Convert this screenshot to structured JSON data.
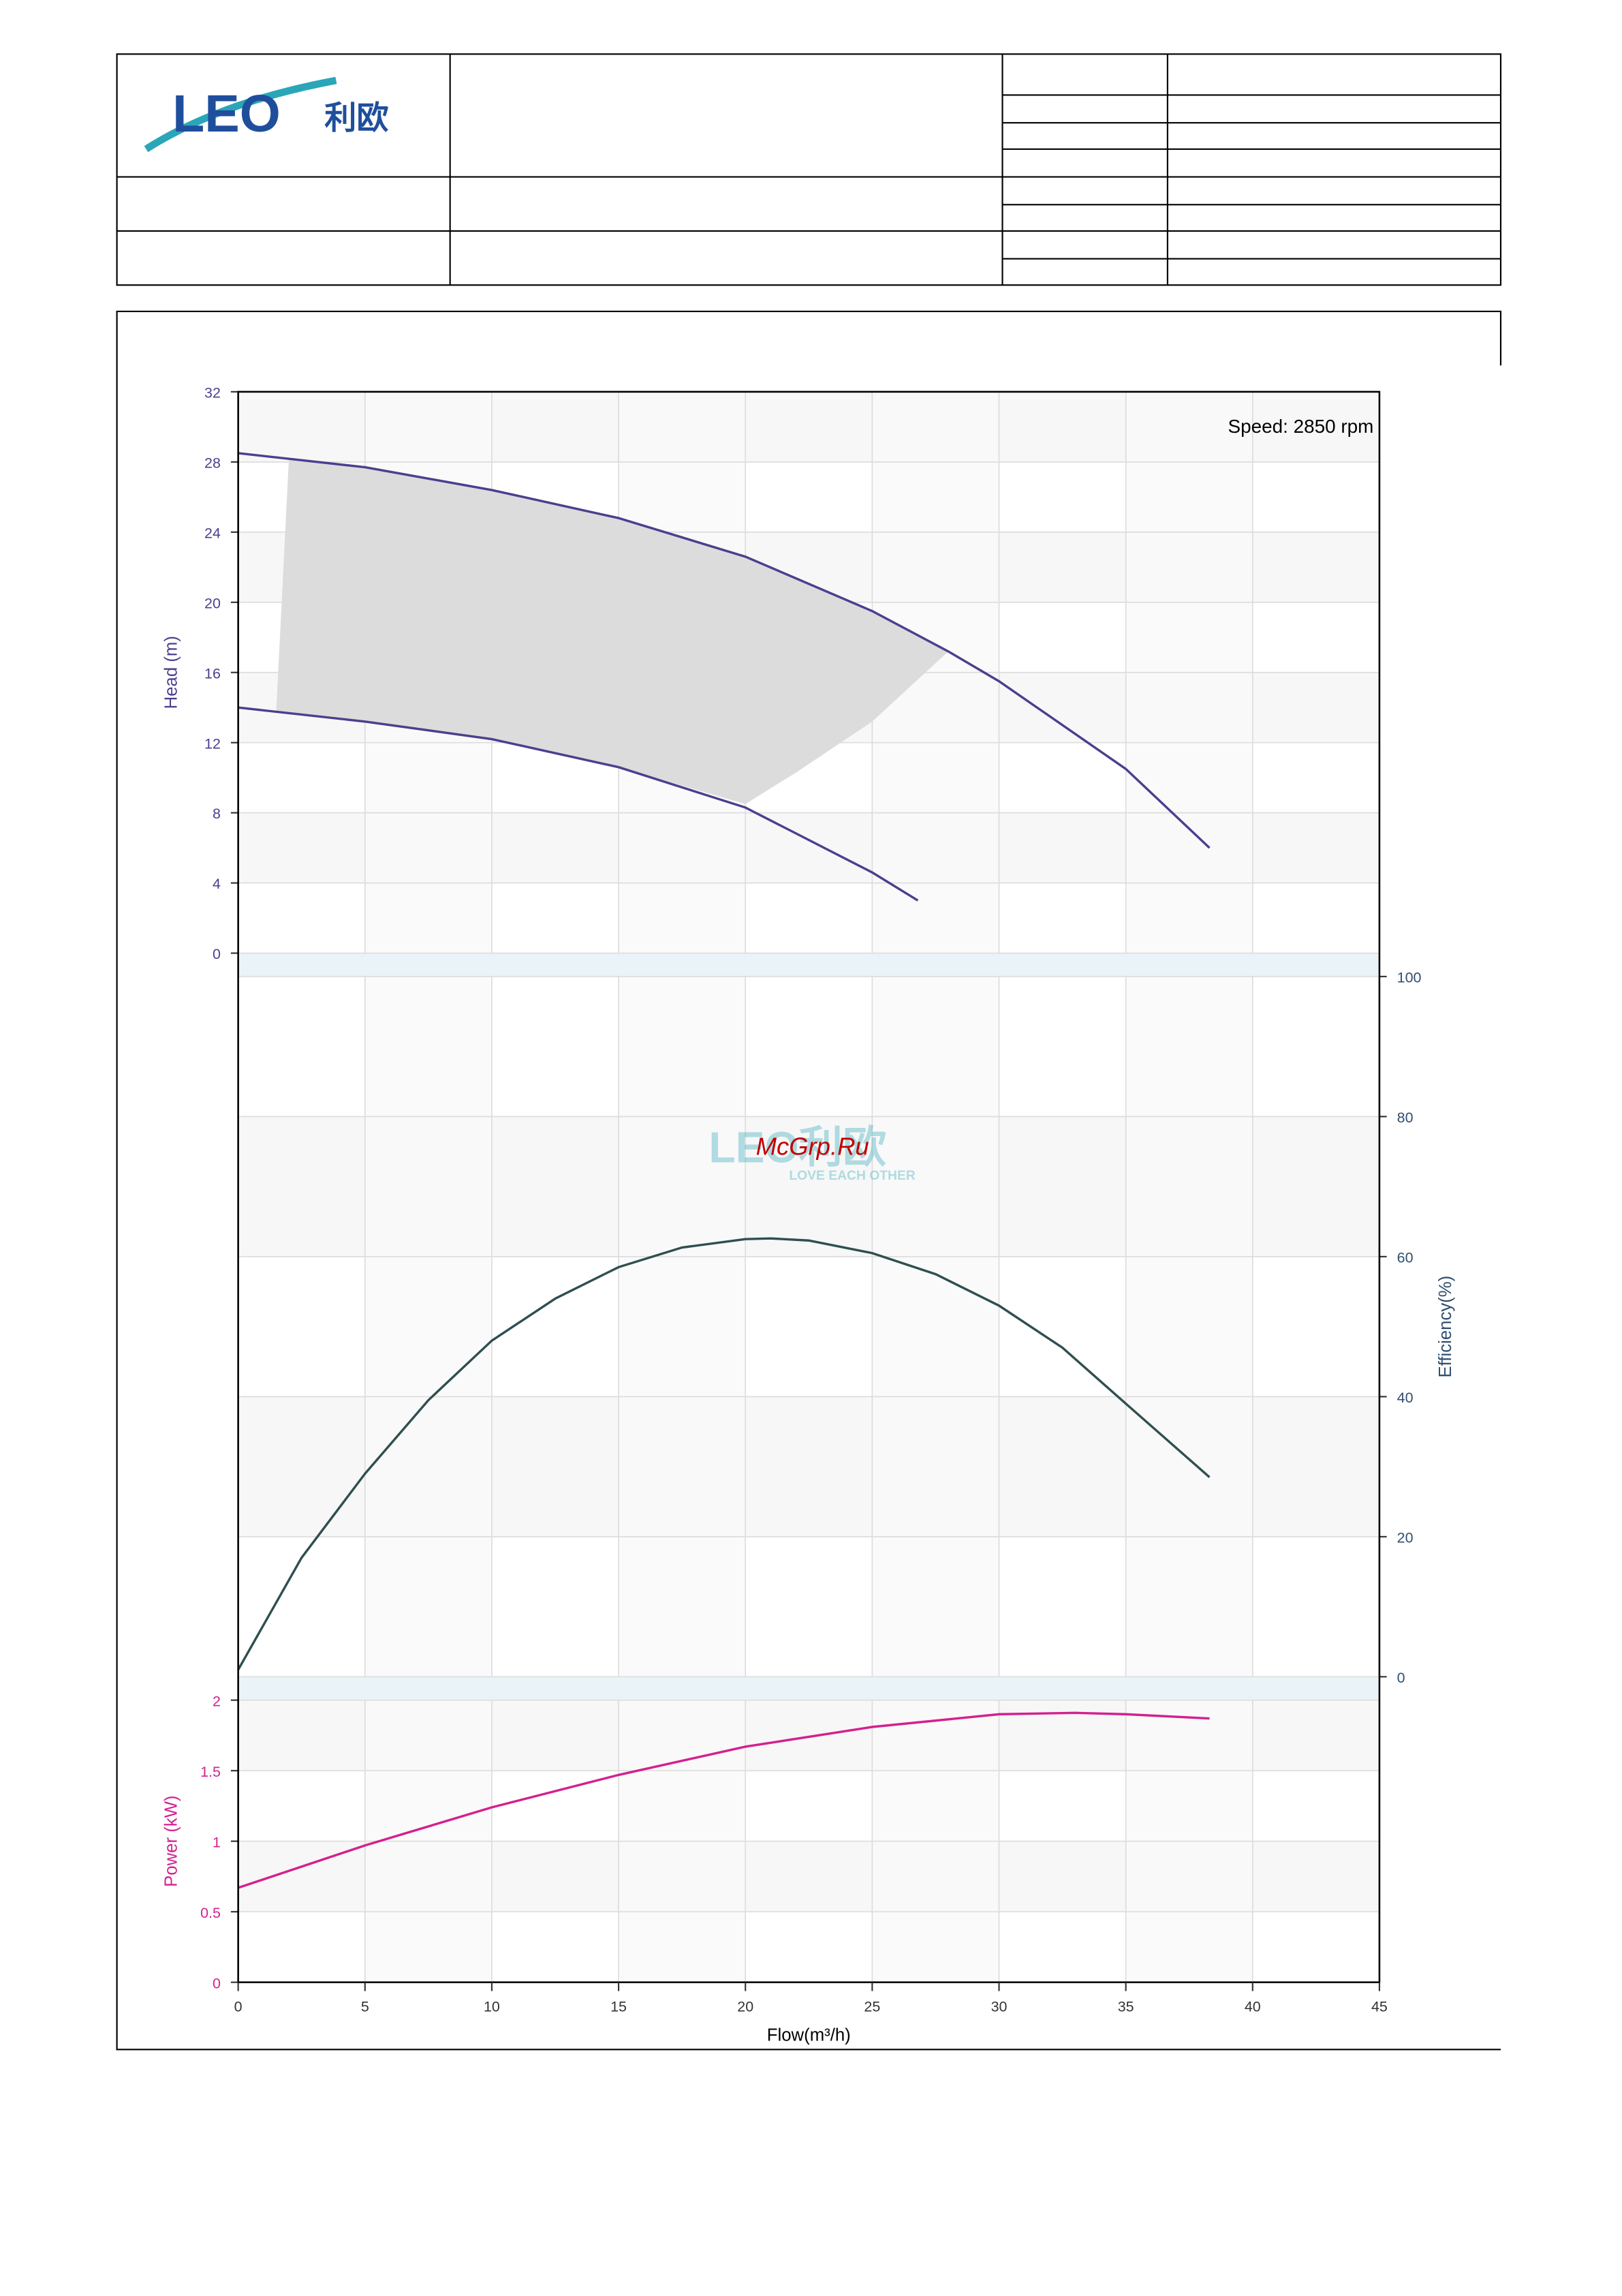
{
  "header": {
    "logo": "LEO",
    "logo_cn": "利欧"
  },
  "watermark": {
    "text": "McGrp.Ru",
    "logo": "LEO利欧",
    "tagline": "LOVE EACH OTHER"
  },
  "chart_data": {
    "type": "line",
    "annotation": "Speed: 2850 rpm",
    "xlabel": "Flow(m³/h)",
    "xlim": [
      0,
      45
    ],
    "xticks": [
      0,
      5,
      10,
      15,
      20,
      25,
      30,
      35,
      40,
      45
    ],
    "grid": true,
    "head": {
      "ylabel": "Head (m)",
      "color": "#4b3f8f",
      "ylim": [
        0,
        32
      ],
      "yticks": [
        0,
        4,
        8,
        12,
        16,
        20,
        24,
        28,
        32
      ],
      "series": [
        {
          "x": [
            0,
            5,
            10,
            15,
            20,
            25,
            28,
            30,
            35,
            38.3
          ],
          "values": [
            28.5,
            27.7,
            26.4,
            24.8,
            22.6,
            19.5,
            17.2,
            15.5,
            10.5,
            6
          ]
        },
        {
          "x": [
            0,
            5,
            10,
            15,
            20,
            25,
            26.8
          ],
          "values": [
            14,
            13.2,
            12.2,
            10.6,
            8.3,
            4.6,
            3
          ]
        }
      ],
      "region": {
        "color": "#dcdcdc",
        "x": [
          2,
          5,
          10,
          15,
          20,
          25,
          28,
          25,
          22,
          20,
          15,
          10,
          5,
          1.5
        ],
        "values": [
          28.2,
          27.7,
          26.4,
          24.8,
          22.6,
          19.5,
          17.2,
          13.2,
          10.3,
          8.5,
          10.6,
          12.2,
          13.2,
          13.8
        ]
      }
    },
    "efficiency": {
      "ylabel": "Efficiency(%)",
      "color": "#2f4f4f",
      "ylim": [
        0,
        100
      ],
      "yticks": [
        0,
        20,
        40,
        60,
        80,
        100
      ],
      "series": [
        {
          "x": [
            0,
            2.5,
            5,
            7.5,
            10,
            12.5,
            15,
            17.5,
            20,
            21,
            22.5,
            25,
            27.5,
            30,
            32.5,
            35,
            38.3
          ],
          "values": [
            1,
            17,
            29,
            39.5,
            48,
            54,
            58.5,
            61.3,
            62.5,
            62.6,
            62.3,
            60.5,
            57.5,
            53,
            47,
            39,
            28.5
          ]
        }
      ]
    },
    "power": {
      "ylabel": "Power (kW)",
      "color": "#d4208f",
      "ylim": [
        0,
        2
      ],
      "yticks": [
        0,
        0.5,
        1,
        1.5,
        2
      ],
      "series": [
        {
          "x": [
            0,
            5,
            10,
            15,
            20,
            25,
            30,
            33,
            35,
            38.3
          ],
          "values": [
            0.67,
            0.97,
            1.24,
            1.47,
            1.67,
            1.81,
            1.9,
            1.91,
            1.9,
            1.87
          ]
        }
      ]
    }
  }
}
